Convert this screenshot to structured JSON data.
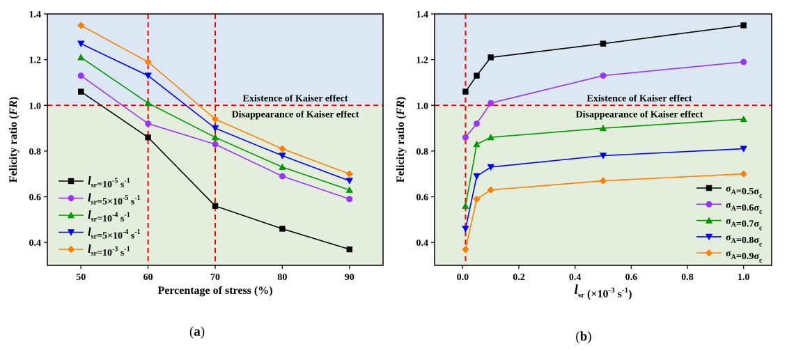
{
  "chart_data": [
    {
      "id": "a",
      "type": "line",
      "panel_label": "a",
      "xlabel": "Percentage of stress (%)",
      "ylabel_prefix": "Felicity ratio (",
      "ylabel_italic": "FR",
      "ylabel_suffix": ")",
      "xlim": [
        45,
        95
      ],
      "ylim": [
        0.3,
        1.4
      ],
      "xticks": [
        50,
        60,
        70,
        80,
        90
      ],
      "yticks": [
        0.4,
        0.6,
        0.8,
        1.0,
        1.2,
        1.4
      ],
      "x": [
        50,
        60,
        70,
        80,
        90
      ],
      "threshold": 1.0,
      "vlines": [
        60,
        70
      ],
      "annotation_above": "Existence of Kaiser effect",
      "annotation_below": "Disappearance of Kaiser effect",
      "legend_position": "bottom-left",
      "series": [
        {
          "name": "l_sr=10^-5 s^-1",
          "var": "l",
          "var_sub": "sr",
          "label_parts": [
            [
              "=10",
              ""
            ],
            [
              "-5",
              "sup"
            ],
            [
              " s",
              ""
            ],
            [
              "-1",
              "sup"
            ]
          ],
          "color": "#000000",
          "marker": "square",
          "values": [
            1.06,
            0.86,
            0.56,
            0.46,
            0.37
          ]
        },
        {
          "name": "l_sr=5×10^-5 s^-1",
          "var": "l",
          "var_sub": "sr",
          "label_parts": [
            [
              "=5×10",
              ""
            ],
            [
              "-5",
              "sup"
            ],
            [
              " s",
              ""
            ],
            [
              "-1",
              "sup"
            ]
          ],
          "color": "#9933ff",
          "marker": "circle",
          "values": [
            1.13,
            0.92,
            0.83,
            0.69,
            0.59
          ]
        },
        {
          "name": "l_sr=10^-4 s^-1",
          "var": "l",
          "var_sub": "sr",
          "label_parts": [
            [
              "=10",
              ""
            ],
            [
              "-4",
              "sup"
            ],
            [
              " s",
              ""
            ],
            [
              "-1",
              "sup"
            ]
          ],
          "color": "#009900",
          "marker": "triangle-up",
          "values": [
            1.21,
            1.01,
            0.86,
            0.73,
            0.63
          ]
        },
        {
          "name": "l_sr=5×10^-4 s^-1",
          "var": "l",
          "var_sub": "sr",
          "label_parts": [
            [
              "=5×10",
              ""
            ],
            [
              "-4",
              "sup"
            ],
            [
              " s",
              ""
            ],
            [
              "-1",
              "sup"
            ]
          ],
          "color": "#0000ff",
          "marker": "triangle-down",
          "values": [
            1.27,
            1.13,
            0.9,
            0.78,
            0.67
          ]
        },
        {
          "name": "l_sr=10^-3 s^-1",
          "var": "l",
          "var_sub": "sr",
          "label_parts": [
            [
              "=10",
              ""
            ],
            [
              "-3",
              "sup"
            ],
            [
              " s",
              ""
            ],
            [
              "-1",
              "sup"
            ]
          ],
          "color": "#ff8000",
          "marker": "diamond",
          "values": [
            1.35,
            1.19,
            0.94,
            0.81,
            0.7
          ]
        }
      ]
    },
    {
      "id": "b",
      "type": "line",
      "panel_label": "b",
      "xlabel_var": "l",
      "xlabel_sub": "sr",
      "xlabel_parts": [
        [
          " (×10",
          ""
        ],
        [
          "-3",
          "sup"
        ],
        [
          " s",
          ""
        ],
        [
          "-1",
          "sup"
        ],
        [
          ")",
          ""
        ]
      ],
      "ylabel_prefix": "Felicity ratio (",
      "ylabel_italic": "FR",
      "ylabel_suffix": ")",
      "xlim": [
        -0.1,
        1.1
      ],
      "ylim": [
        0.3,
        1.4
      ],
      "xticks": [
        0.0,
        0.2,
        0.4,
        0.6,
        0.8,
        1.0
      ],
      "yticks": [
        0.4,
        0.6,
        0.8,
        1.0,
        1.2,
        1.4
      ],
      "x": [
        0.01,
        0.05,
        0.1,
        0.5,
        1.0
      ],
      "threshold": 1.0,
      "vlines": [
        0.01
      ],
      "annotation_above": "Existence of Kaiser effect",
      "annotation_below": "Disappearance of Kaiser effect",
      "legend_position": "bottom-right",
      "series": [
        {
          "name": "σA=0.5σc",
          "var": "σ",
          "var_sub": "A",
          "label_parts": [
            [
              "=0.5σ",
              ""
            ],
            [
              "c",
              "sub"
            ]
          ],
          "color": "#000000",
          "marker": "square",
          "values": [
            1.06,
            1.13,
            1.21,
            1.27,
            1.35
          ]
        },
        {
          "name": "σA=0.6σc",
          "var": "σ",
          "var_sub": "A",
          "label_parts": [
            [
              "=0.6σ",
              ""
            ],
            [
              "c",
              "sub"
            ]
          ],
          "color": "#9933ff",
          "marker": "circle",
          "values": [
            0.86,
            0.92,
            1.01,
            1.13,
            1.19
          ]
        },
        {
          "name": "σA=0.7σc",
          "var": "σ",
          "var_sub": "A",
          "label_parts": [
            [
              "=0.7σ",
              ""
            ],
            [
              "c",
              "sub"
            ]
          ],
          "color": "#009900",
          "marker": "triangle-up",
          "values": [
            0.56,
            0.83,
            0.86,
            0.9,
            0.94
          ]
        },
        {
          "name": "σA=0.8σc",
          "var": "σ",
          "var_sub": "A",
          "label_parts": [
            [
              "=0.8σ",
              ""
            ],
            [
              "c",
              "sub"
            ]
          ],
          "color": "#0000ff",
          "marker": "triangle-down",
          "values": [
            0.46,
            0.69,
            0.73,
            0.78,
            0.81
          ]
        },
        {
          "name": "σA=0.9σc",
          "var": "σ",
          "var_sub": "A",
          "label_parts": [
            [
              "=0.9σ",
              ""
            ],
            [
              "c",
              "sub"
            ]
          ],
          "color": "#ff8000",
          "marker": "diamond",
          "values": [
            0.37,
            0.59,
            0.63,
            0.67,
            0.7
          ]
        }
      ]
    }
  ],
  "colors": {
    "region_above": "#dbe8f4",
    "region_below": "#e4eedc",
    "reference_line": "#ff0000"
  }
}
